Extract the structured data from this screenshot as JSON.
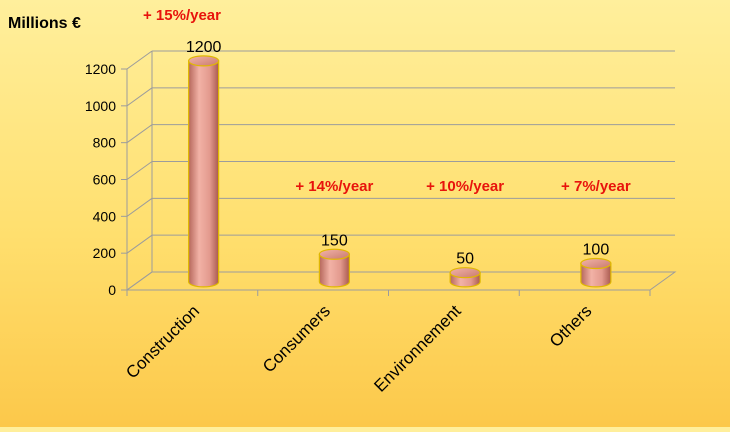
{
  "chart_data": {
    "type": "bar",
    "title": "",
    "ylabel": "Millions €",
    "xlabel": "",
    "categories": [
      "Construction",
      "Consumers",
      "Environnement",
      "Others"
    ],
    "values": [
      1200,
      150,
      50,
      100
    ],
    "value_labels": [
      "1200",
      "150",
      "50",
      "100"
    ],
    "growth_annotations": [
      "+ 15%/year",
      "+ 14%/year",
      "+ 10%/year",
      "+ 7%/year"
    ],
    "yticks": [
      0,
      200,
      400,
      600,
      800,
      1000,
      1200
    ],
    "ylim": [
      0,
      1200
    ],
    "grid": true,
    "legend": "none",
    "bar_style": "3d-cylinder",
    "colors": {
      "bar_body": "#e39a8e",
      "bar_shadow": "#b5675b",
      "bar_outline": "#e0b800",
      "annotation": "#e8140c",
      "gridline": "#9c9c9c",
      "text": "#000000"
    }
  }
}
